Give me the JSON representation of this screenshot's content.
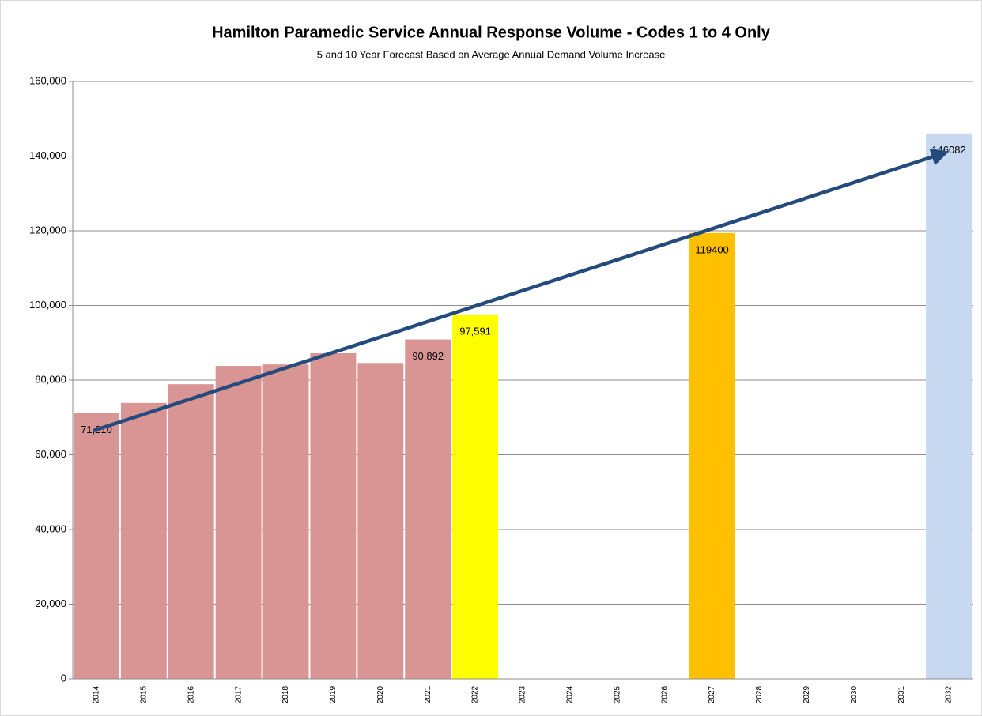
{
  "chart_data": {
    "type": "bar",
    "title": "Hamilton Paramedic Service Annual Response Volume - Codes 1 to 4 Only",
    "subtitle": "5 and 10 Year Forecast Based on Average Annual Demand Volume Increase",
    "categories": [
      "2014",
      "2015",
      "2016",
      "2017",
      "2018",
      "2019",
      "2020",
      "2021",
      "2022",
      "2023",
      "2024",
      "2025",
      "2026",
      "2027",
      "2028",
      "2029",
      "2030",
      "2031",
      "2032"
    ],
    "values": [
      71210,
      73900,
      78900,
      83800,
      84200,
      87200,
      84600,
      90892,
      97591,
      null,
      null,
      null,
      null,
      119400,
      null,
      null,
      null,
      null,
      146082
    ],
    "value_labels": [
      "71,210",
      null,
      null,
      null,
      null,
      null,
      null,
      "90,892",
      "97,591",
      null,
      null,
      null,
      null,
      "119400",
      null,
      null,
      null,
      null,
      "146082"
    ],
    "colors": [
      "#d99594",
      "#d99594",
      "#d99594",
      "#d99594",
      "#d99594",
      "#d99594",
      "#d99594",
      "#d99594",
      "#ffff00",
      null,
      null,
      null,
      null,
      "#ffc000",
      null,
      null,
      null,
      null,
      "#c6d9f1"
    ],
    "ylim": [
      0,
      160000
    ],
    "yticks": [
      0,
      {
        "value": 20000,
        "label": "20,000"
      },
      {
        "value": 40000,
        "label": "40,000"
      },
      {
        "value": 60000,
        "label": "60,000"
      },
      {
        "value": 80000,
        "label": "80,000"
      },
      {
        "value": 100000,
        "label": "100,000"
      },
      {
        "value": 120000,
        "label": "120,000"
      },
      {
        "value": 140000,
        "label": "140,000"
      },
      {
        "value": 160000,
        "label": "160,000"
      }
    ],
    "grid": true
  }
}
